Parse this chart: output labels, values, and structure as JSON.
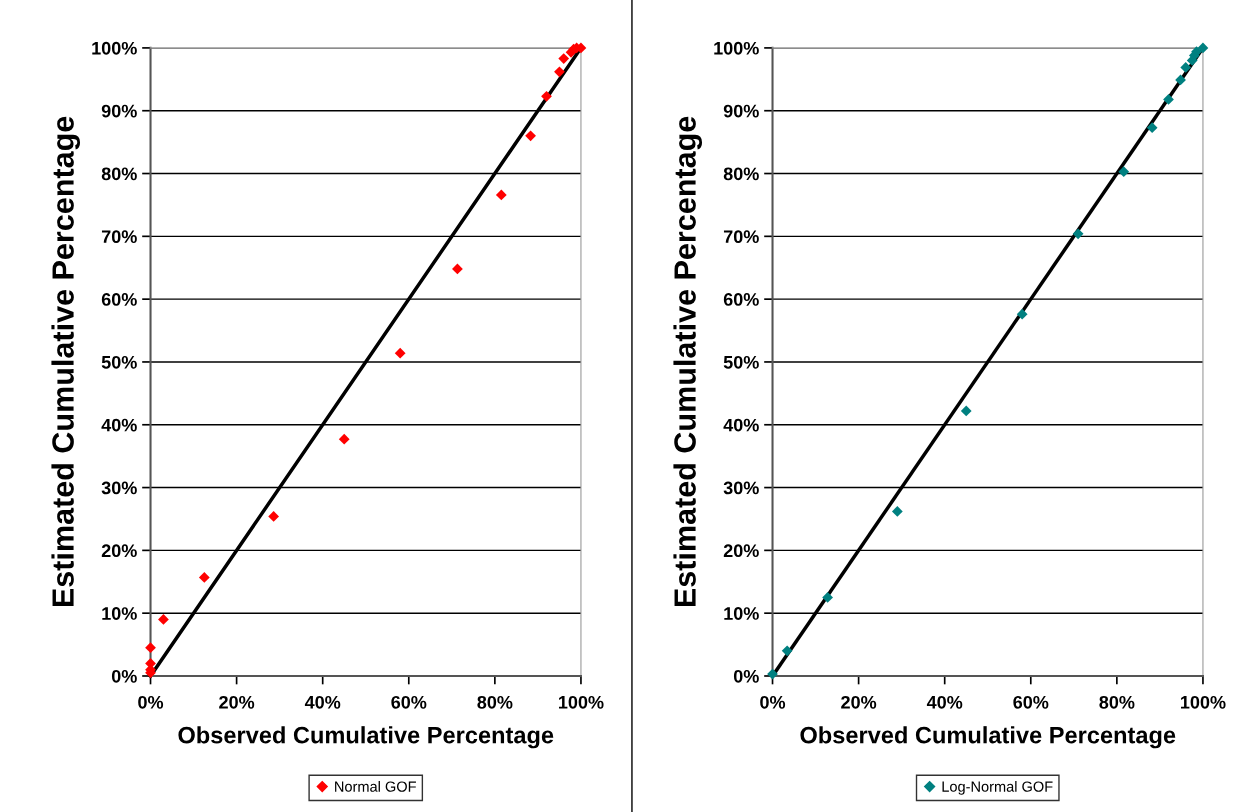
{
  "chart_data": [
    {
      "type": "scatter",
      "xlabel": "Observed Cumulative Percentage",
      "ylabel": "Estimated Cumulative Percentage",
      "grid": "y",
      "legend": "bottom",
      "xlim": [
        0,
        100
      ],
      "ylim": [
        0,
        100
      ],
      "xticks": [
        {
          "value": 0,
          "label": "0%"
        },
        {
          "value": 20,
          "label": "20%"
        },
        {
          "value": 40,
          "label": "40%"
        },
        {
          "value": 60,
          "label": "60%"
        },
        {
          "value": 80,
          "label": "80%"
        },
        {
          "value": 100,
          "label": "100%"
        }
      ],
      "yticks": [
        {
          "value": 0,
          "label": "0%"
        },
        {
          "value": 10,
          "label": "10%"
        },
        {
          "value": 20,
          "label": "20%"
        },
        {
          "value": 30,
          "label": "30%"
        },
        {
          "value": 40,
          "label": "40%"
        },
        {
          "value": 50,
          "label": "50%"
        },
        {
          "value": 60,
          "label": "60%"
        },
        {
          "value": 70,
          "label": "70%"
        },
        {
          "value": 80,
          "label": "80%"
        },
        {
          "value": 90,
          "label": "90%"
        },
        {
          "value": 100,
          "label": "100%"
        }
      ],
      "series": [
        {
          "name": "Normal GOF",
          "color": "#ff0000",
          "marker": "diamond",
          "x": [
            0,
            0,
            0,
            0,
            3,
            12.5,
            28.6,
            45,
            58,
            71.3,
            81.5,
            88.3,
            92,
            95,
            96,
            97.7,
            98.3,
            99,
            100
          ],
          "values": [
            0.5,
            1,
            2,
            4.5,
            9,
            15.7,
            25.4,
            37.7,
            51.4,
            64.8,
            76.6,
            86,
            92.3,
            96.2,
            98.3,
            99.3,
            99.8,
            100,
            100
          ]
        },
        {
          "type": "line",
          "color": "#000000",
          "x": [
            0,
            100
          ],
          "values": [
            0,
            100
          ]
        }
      ]
    },
    {
      "type": "scatter",
      "xlabel": "Observed Cumulative Percentage",
      "ylabel": "Estimated Cumulative Percentage",
      "grid": "y",
      "legend": "bottom",
      "xlim": [
        0,
        100
      ],
      "ylim": [
        0,
        100
      ],
      "xticks": [
        {
          "value": 0,
          "label": "0%"
        },
        {
          "value": 20,
          "label": "20%"
        },
        {
          "value": 40,
          "label": "40%"
        },
        {
          "value": 60,
          "label": "60%"
        },
        {
          "value": 80,
          "label": "80%"
        },
        {
          "value": 100,
          "label": "100%"
        }
      ],
      "yticks": [
        {
          "value": 0,
          "label": "0%"
        },
        {
          "value": 10,
          "label": "10%"
        },
        {
          "value": 20,
          "label": "20%"
        },
        {
          "value": 30,
          "label": "30%"
        },
        {
          "value": 40,
          "label": "40%"
        },
        {
          "value": 50,
          "label": "50%"
        },
        {
          "value": 60,
          "label": "60%"
        },
        {
          "value": 70,
          "label": "70%"
        },
        {
          "value": 80,
          "label": "80%"
        },
        {
          "value": 90,
          "label": "90%"
        },
        {
          "value": 100,
          "label": "100%"
        }
      ],
      "series": [
        {
          "name": "Log-Normal GOF",
          "color": "#008080",
          "marker": "diamond",
          "x": [
            0,
            3.4,
            12.8,
            29,
            45,
            58,
            71,
            81.6,
            88.2,
            92,
            94.8,
            96,
            97.5,
            98,
            98.5,
            100
          ],
          "values": [
            0.3,
            4,
            12.5,
            26.2,
            42.2,
            57.6,
            70.4,
            80.3,
            87.3,
            91.8,
            94.9,
            96.9,
            98,
            98.8,
            99.4,
            100
          ]
        },
        {
          "type": "line",
          "color": "#000000",
          "x": [
            0,
            100
          ],
          "values": [
            0,
            100
          ]
        }
      ]
    }
  ]
}
